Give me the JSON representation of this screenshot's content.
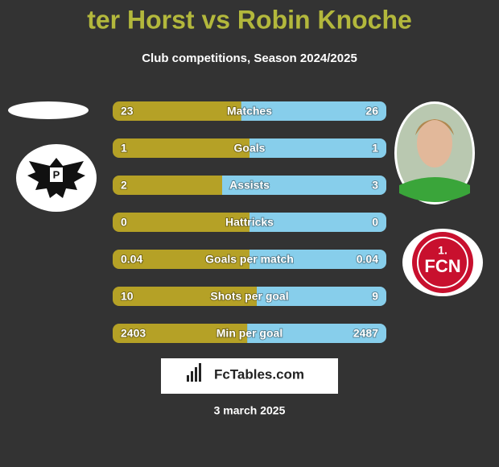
{
  "header": {
    "title": "ter Horst vs Robin Knoche",
    "subtitle": "Club competitions, Season 2024/2025"
  },
  "stats": [
    {
      "label": "Matches",
      "left": 23,
      "right": 26
    },
    {
      "label": "Goals",
      "left": 1,
      "right": 1
    },
    {
      "label": "Assists",
      "left": 2,
      "right": 3
    },
    {
      "label": "Hattricks",
      "left": 0,
      "right": 0
    },
    {
      "label": "Goals per match",
      "left": 0.04,
      "right": 0.04
    },
    {
      "label": "Shots per goal",
      "left": 10,
      "right": 9
    },
    {
      "label": "Min per goal",
      "left": 2403,
      "right": 2487
    }
  ],
  "footer": {
    "brand": "FcTables.com",
    "date": "3 march 2025"
  }
}
